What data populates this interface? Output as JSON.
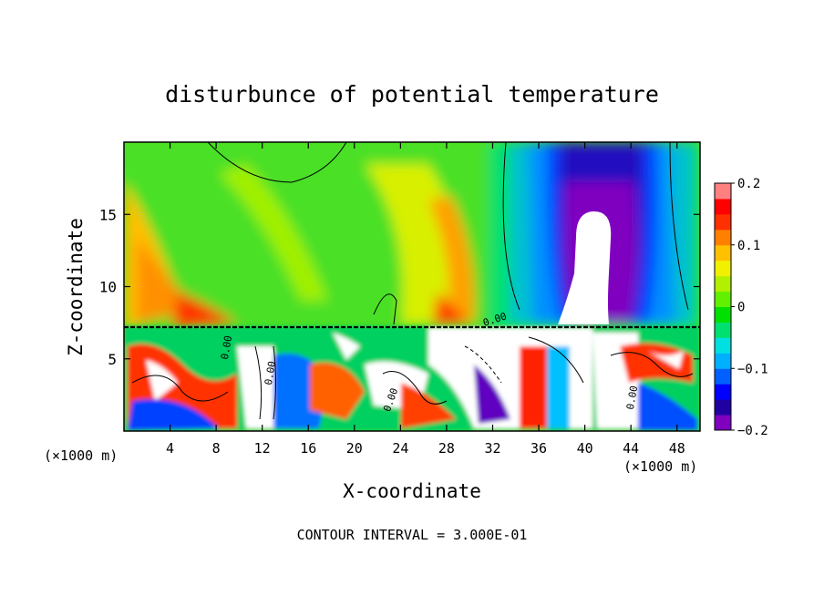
{
  "chart_data": {
    "type": "heatmap",
    "title": "disturbunce of potential temperature",
    "xlabel": "X-coordinate",
    "ylabel": "Z-coordinate",
    "x_unit_label_left": "(×1000 m)",
    "x_unit_label_right": "(×1000 m)",
    "xlim": [
      0,
      50
    ],
    "ylim": [
      0,
      20
    ],
    "x_ticks": [
      4,
      8,
      12,
      16,
      20,
      24,
      28,
      32,
      36,
      40,
      44,
      48
    ],
    "y_ticks": [
      5,
      10,
      15
    ],
    "colorbar": {
      "range": [
        -0.2,
        0.2
      ],
      "ticks": [
        0.2,
        0.1,
        0,
        -0.1,
        -0.2
      ],
      "tick_labels": [
        "0.2",
        "0.1",
        "0",
        "−0.1",
        "−0.2"
      ],
      "colors": [
        "#8000c0",
        "#2000a0",
        "#0000ff",
        "#0060ff",
        "#00b0ff",
        "#00e0e0",
        "#00e070",
        "#00e000",
        "#60f000",
        "#b0f000",
        "#f0f000",
        "#ffc000",
        "#ff8000",
        "#ff3000",
        "#ff0000",
        "#ff8080"
      ]
    },
    "contour_labels": [
      "0.00",
      "0.00",
      "0.00",
      "0.00",
      "0.00"
    ],
    "annotation": "CONTOUR INTERVAL = 3.000E-01"
  }
}
